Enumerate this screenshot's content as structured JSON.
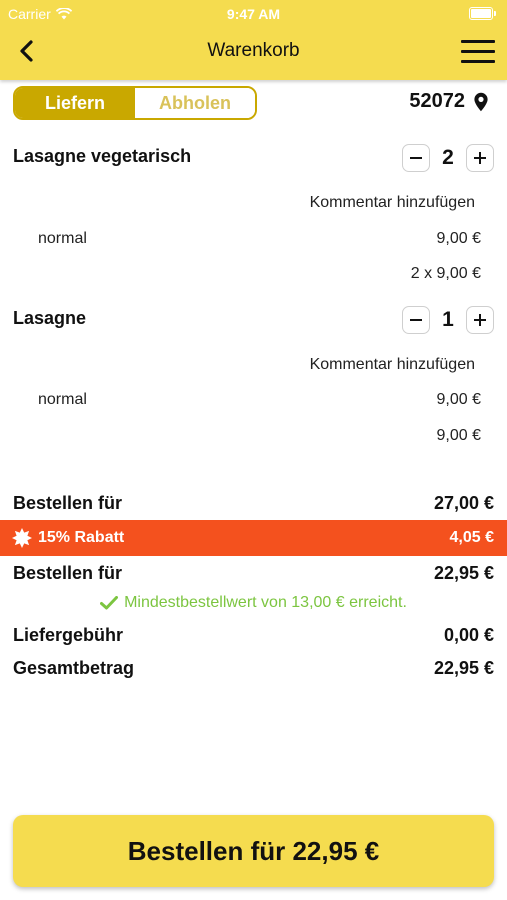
{
  "status_bar": {
    "carrier": "Carrier",
    "time": "9:47 AM"
  },
  "nav": {
    "title": "Warenkorb",
    "back_icon": "chevron-left-icon",
    "menu_icon": "hamburger-menu-icon"
  },
  "mode": {
    "deliver_label": "Liefern",
    "pickup_label": "Abholen",
    "selected": "Liefern"
  },
  "location": {
    "postcode": "52072"
  },
  "items": [
    {
      "name": "Lasagne vegetarisch",
      "quantity": "2",
      "comment_label": "Kommentar hinzufügen",
      "variant": "normal",
      "unit_price": "9,00 €",
      "line_total": "2 x 9,00 €"
    },
    {
      "name": "Lasagne",
      "quantity": "1",
      "comment_label": "Kommentar hinzufügen",
      "variant": "normal",
      "unit_price": "9,00 €",
      "line_total": "9,00 €"
    }
  ],
  "summary": {
    "subtotal_label": "Bestellen für",
    "subtotal_value": "27,00 €",
    "discount_label": "15% Rabatt",
    "discount_value": "4,05 €",
    "after_discount_label": "Bestellen für",
    "after_discount_value": "22,95 €",
    "min_order_note": "Mindestbestellwert von 13,00 € erreicht.",
    "delivery_fee_label": "Liefergebühr",
    "delivery_fee_value": "0,00 €",
    "total_label": "Gesamtbetrag",
    "total_value": "22,95 €"
  },
  "order_button": {
    "label": "Bestellen für 22,95 €"
  },
  "colors": {
    "brand_yellow": "#f5dc4f",
    "segment_gold": "#c9a800",
    "discount_orange": "#f4511e",
    "success_green": "#7cc540"
  }
}
